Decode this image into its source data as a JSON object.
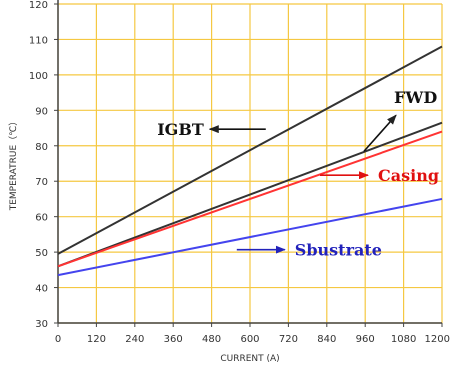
{
  "chart_data": {
    "type": "line",
    "xlabel": "CURRENT (A)",
    "ylabel": "TEMPERATRUE（℃）",
    "xlim": [
      0,
      1200
    ],
    "ylim": [
      30,
      120
    ],
    "x_ticks": [
      0,
      120,
      240,
      360,
      480,
      600,
      720,
      840,
      960,
      1080,
      1200
    ],
    "x_tick_labels": [
      "0",
      "120",
      "240",
      "360",
      "480",
      "600",
      "720",
      "840",
      "960",
      "1080",
      "1200"
    ],
    "y_ticks": [
      30,
      40,
      50,
      60,
      70,
      80,
      90,
      100,
      110,
      120
    ],
    "y_tick_labels": [
      "30",
      "40",
      "50",
      "60",
      "70",
      "80",
      "90",
      "100",
      "110",
      "120"
    ],
    "grid": true,
    "grid_color": "#f5c842",
    "series": [
      {
        "name": "IGBT",
        "color": "#333333",
        "x": [
          0,
          1200
        ],
        "y": [
          49.5,
          108
        ]
      },
      {
        "name": "FWD",
        "color": "#333333",
        "x": [
          0,
          1200
        ],
        "y": [
          46,
          86.5
        ]
      },
      {
        "name": "Casing",
        "color": "#ff3333",
        "x": [
          0,
          1200
        ],
        "y": [
          46,
          84
        ]
      },
      {
        "name": "Sbustrate",
        "color": "#4444ee",
        "x": [
          0,
          1200
        ],
        "y": [
          43.5,
          65
        ]
      }
    ],
    "annotations": [
      {
        "text": "IGBT",
        "color": "#111111",
        "arrow": "left",
        "x": 310,
        "y": 83
      },
      {
        "text": "FWD",
        "color": "#111111",
        "arrow": "up-right",
        "x": 1050,
        "y": 92
      },
      {
        "text": "Casing",
        "color": "#e01010",
        "arrow": "right",
        "x": 1000,
        "y": 70
      },
      {
        "text": "Sbustrate",
        "color": "#2222bb",
        "arrow": "right",
        "x": 740,
        "y": 49
      }
    ]
  }
}
